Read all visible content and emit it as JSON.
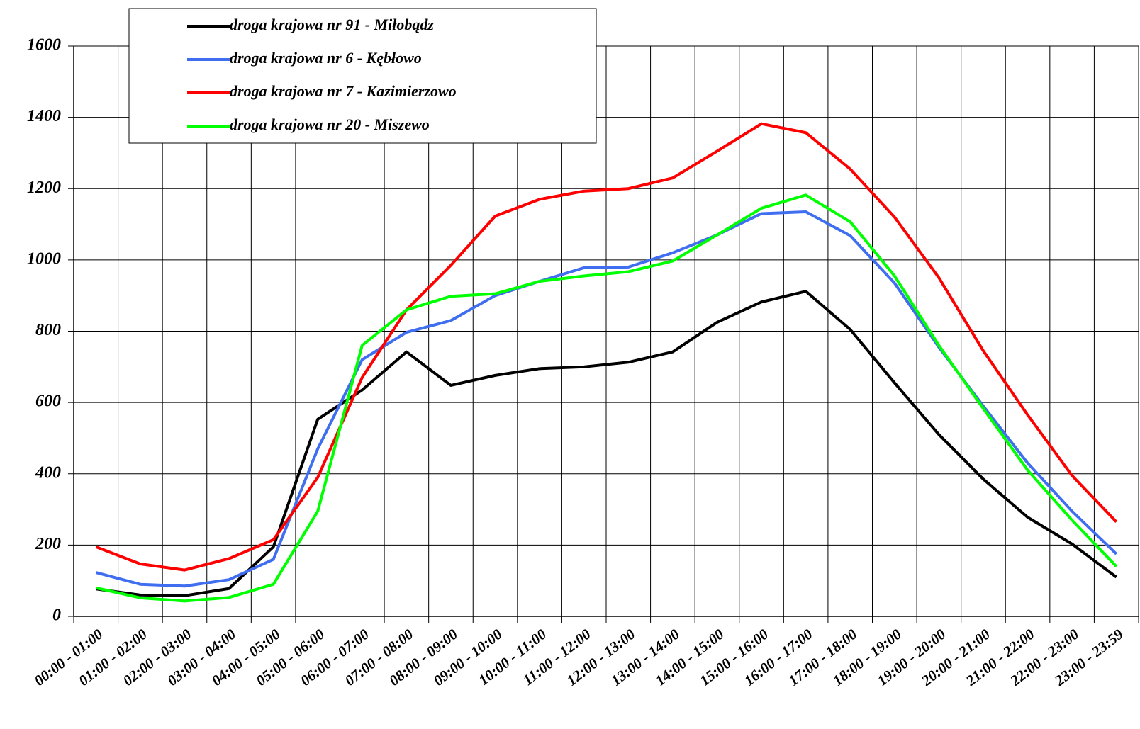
{
  "chart_data": {
    "type": "line",
    "categories": [
      "00:00 - 01:00",
      "01:00 - 02:00",
      "02:00 - 03:00",
      "03:00 - 04:00",
      "04:00 - 05:00",
      "05:00 - 06:00",
      "06:00 - 07:00",
      "07:00 - 08:00",
      "08:00 - 09:00",
      "09:00 - 10:00",
      "10:00 - 11:00",
      "11:00 - 12:00",
      "12:00 - 13:00",
      "13:00 - 14:00",
      "14:00 - 15:00",
      "15:00 - 16:00",
      "16:00 - 17:00",
      "17:00 - 18:00",
      "18:00 - 19:00",
      "19:00 - 20:00",
      "20:00 - 21:00",
      "21:00 - 22:00",
      "22:00 - 23:00",
      "23:00 - 23:59"
    ],
    "series": [
      {
        "name": "droga krajowa nr 91 - Miłobądz",
        "color": "#000000",
        "values": [
          77,
          60,
          58,
          78,
          195,
          553,
          635,
          742,
          648,
          676,
          695,
          700,
          713,
          742,
          825,
          882,
          912,
          805,
          655,
          510,
          385,
          278,
          203,
          110
        ]
      },
      {
        "name": "droga krajowa nr 6 - Kębłowo",
        "color": "#3f6ff0",
        "values": [
          123,
          90,
          85,
          103,
          160,
          470,
          720,
          797,
          830,
          900,
          940,
          978,
          980,
          1020,
          1070,
          1130,
          1135,
          1068,
          935,
          755,
          590,
          430,
          295,
          175
        ]
      },
      {
        "name": "droga krajowa nr 7 -  Kazimierzowo",
        "color": "#ff0000",
        "values": [
          195,
          147,
          130,
          162,
          215,
          390,
          670,
          860,
          985,
          1123,
          1170,
          1193,
          1200,
          1230,
          1305,
          1382,
          1357,
          1255,
          1120,
          950,
          745,
          565,
          395,
          265
        ]
      },
      {
        "name": "droga krajowa nr 20 - Miszewo",
        "color": "#00ff00",
        "values": [
          80,
          52,
          43,
          53,
          90,
          295,
          760,
          860,
          898,
          905,
          940,
          955,
          967,
          997,
          1070,
          1145,
          1182,
          1107,
          955,
          760,
          583,
          410,
          270,
          140
        ]
      }
    ],
    "ylim": [
      0,
      1600
    ],
    "yticks": [
      0,
      200,
      400,
      600,
      800,
      1000,
      1200,
      1400,
      1600
    ],
    "grid": true
  }
}
